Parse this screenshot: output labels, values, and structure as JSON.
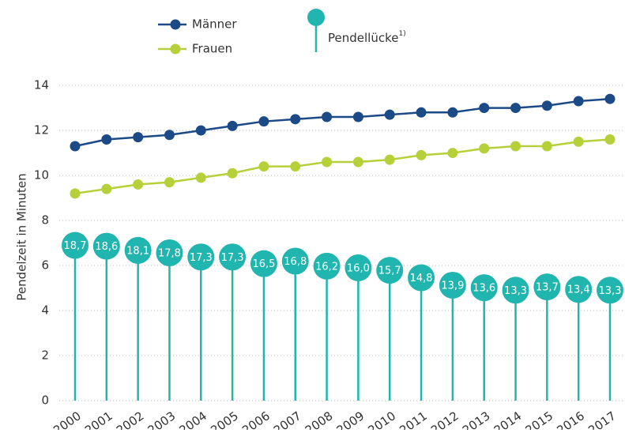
{
  "chart_data": {
    "type": "line",
    "categories": [
      "2000",
      "2001",
      "2002",
      "2003",
      "2004",
      "2005",
      "2006",
      "2007",
      "2008",
      "2009",
      "2010",
      "2011",
      "2012",
      "2013",
      "2014",
      "2015",
      "2016",
      "2017"
    ],
    "y_label": "Pendelzeit in Minuten",
    "ylim": [
      0,
      14.6
    ],
    "yticks": [
      0,
      2,
      4,
      6,
      8,
      10,
      12,
      14
    ],
    "grid": true,
    "y2lim": [
      0,
      39.6
    ],
    "series": [
      {
        "name": "Männer",
        "color": "#1c4a87",
        "values": [
          11.3,
          11.6,
          11.7,
          11.8,
          12.0,
          12.2,
          12.4,
          12.5,
          12.6,
          12.6,
          12.7,
          12.8,
          12.8,
          13.0,
          13.0,
          13.1,
          13.3,
          13.4
        ]
      },
      {
        "name": "Frauen",
        "color": "#b6d03a",
        "values": [
          9.2,
          9.4,
          9.6,
          9.7,
          9.9,
          10.1,
          10.4,
          10.4,
          10.6,
          10.6,
          10.7,
          10.9,
          11.0,
          11.2,
          11.3,
          11.3,
          11.5,
          11.6
        ]
      },
      {
        "name": "Pendellücke",
        "footnote_marker": "1)",
        "type": "lollipop",
        "axis": "y2",
        "color": "#20b5ae",
        "values": [
          18.7,
          18.6,
          18.1,
          17.8,
          17.3,
          17.3,
          16.5,
          16.8,
          16.2,
          16.0,
          15.7,
          14.8,
          13.9,
          13.6,
          13.3,
          13.7,
          13.4,
          13.3
        ],
        "value_labels": [
          "18,7",
          "18,6",
          "18,1",
          "17,8",
          "17,3",
          "17,3",
          "16,5",
          "16,8",
          "16,2",
          "16,0",
          "15,7",
          "14,8",
          "13,9",
          "13,6",
          "13,3",
          "13,7",
          "13,4",
          "13,3"
        ]
      }
    ]
  }
}
